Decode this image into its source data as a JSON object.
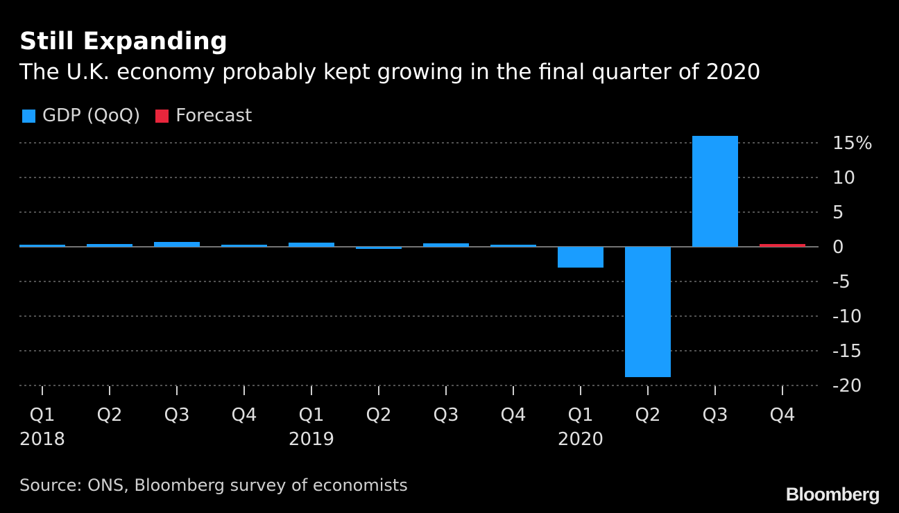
{
  "header": {
    "title": "Still Expanding",
    "subtitle": "The U.K. economy probably kept growing in the final quarter of 2020"
  },
  "legend": {
    "items": [
      {
        "label": "GDP (QoQ)",
        "color": "#1a9dff"
      },
      {
        "label": "Forecast",
        "color": "#e8263c"
      }
    ]
  },
  "footer": {
    "source": "Source: ONS, Bloomberg survey of economists",
    "logo": "Bloomberg"
  },
  "chart_data": {
    "type": "bar",
    "categories": [
      "Q1",
      "Q2",
      "Q3",
      "Q4",
      "Q1",
      "Q2",
      "Q3",
      "Q4",
      "Q1",
      "Q2",
      "Q3",
      "Q4"
    ],
    "year_labels": [
      "2018",
      "",
      "",
      "",
      "2019",
      "",
      "",
      "",
      "2020",
      "",
      "",
      ""
    ],
    "series": [
      {
        "name": "GDP (QoQ)",
        "color": "#1a9dff",
        "values": [
          0.1,
          0.4,
          0.7,
          0.2,
          0.6,
          -0.1,
          0.5,
          0.1,
          -3.0,
          -18.8,
          16.0,
          null
        ]
      },
      {
        "name": "Forecast",
        "color": "#e8263c",
        "values": [
          null,
          null,
          null,
          null,
          null,
          null,
          null,
          null,
          null,
          null,
          null,
          0.4
        ]
      }
    ],
    "ylim": [
      -20,
      15
    ],
    "yticks": [
      15,
      10,
      5,
      0,
      -5,
      -10,
      -15,
      -20
    ],
    "ytick_labels": [
      "15%",
      "10",
      "5",
      "0",
      "-5",
      "-10",
      "-15",
      "-20"
    ],
    "y_axis_position": "right",
    "grid": true,
    "legend_position": "top-left"
  }
}
